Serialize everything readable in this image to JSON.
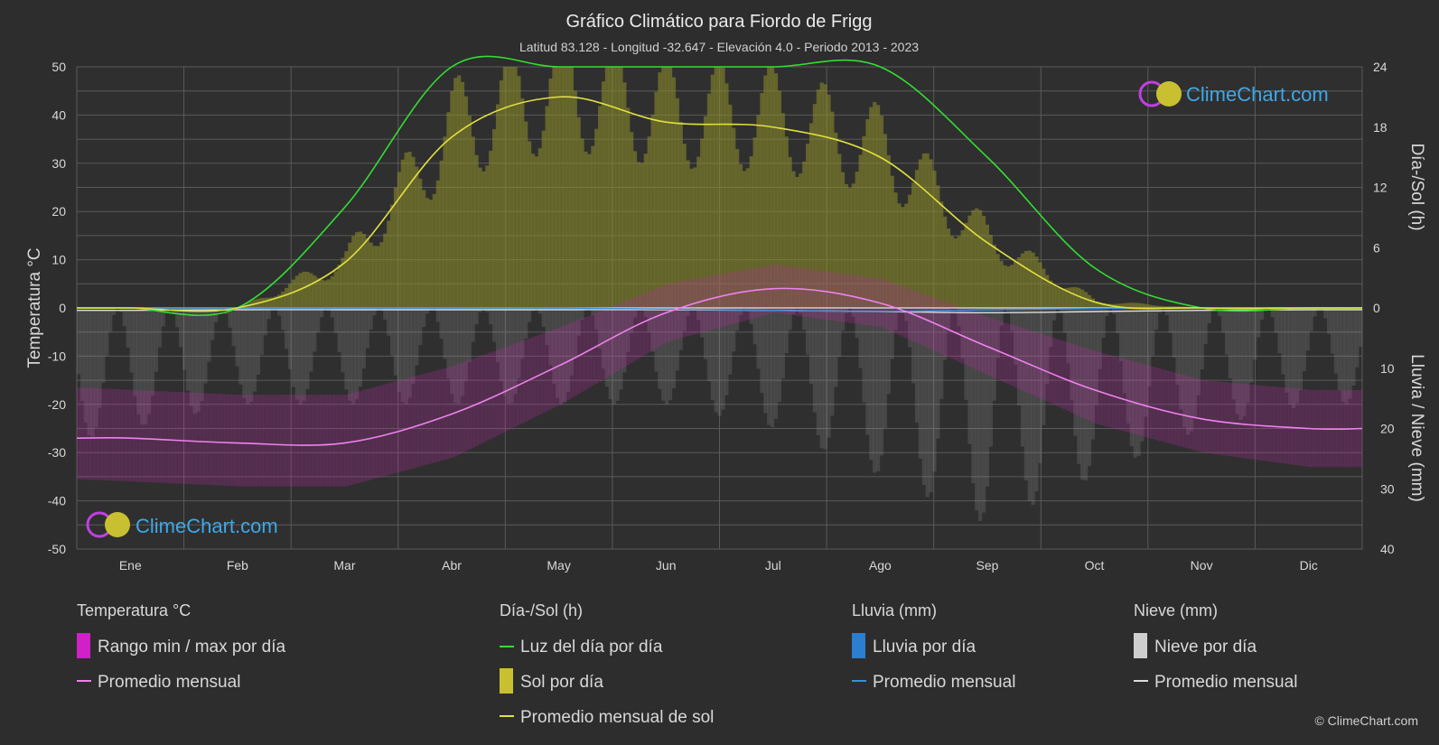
{
  "header": {
    "title": "Gráfico Climático para Fiordo de Frigg",
    "subtitle": "Latitud 83.128 - Longitud -32.647 - Elevación 4.0 - Periodo 2013 - 2023"
  },
  "branding": {
    "logo_text": "ClimeChart.com",
    "copyright": "© ClimeChart.com"
  },
  "axes": {
    "left_title": "Temperatura °C",
    "right_top_title": "Día-/Sol (h)",
    "right_bottom_title": "Lluvia / Nieve (mm)",
    "left_ticks": [
      "50",
      "40",
      "30",
      "20",
      "10",
      "0",
      "-10",
      "-20",
      "-30",
      "-40",
      "-50"
    ],
    "right_top_ticks": [
      "24",
      "18",
      "12",
      "6",
      "0"
    ],
    "right_bottom_ticks": [
      "10",
      "20",
      "30",
      "40"
    ]
  },
  "legend": {
    "temp": {
      "head": "Temperatura °C",
      "range": "Rango min / max por día",
      "avg": "Promedio mensual"
    },
    "sun": {
      "head": "Día-/Sol (h)",
      "daylight": "Luz del día por día",
      "sun": "Sol por día",
      "avg": "Promedio mensual de sol"
    },
    "rain": {
      "head": "Lluvia (mm)",
      "daily": "Lluvia por día",
      "avg": "Promedio mensual"
    },
    "snow": {
      "head": "Nieve (mm)",
      "daily": "Nieve por día",
      "avg": "Promedio mensual"
    }
  },
  "colors": {
    "background": "#2d2d2d",
    "grid": "#5a5a5a",
    "temp_avg": "#ee82ee",
    "temp_range": "#b0309f",
    "daylight": "#33dd33",
    "sun_fill": "#8e8e2a",
    "sun_avg": "#e0e040",
    "rain": "#3a8fd8",
    "snow": "#9a9a9a",
    "snow_avg": "#dddddd"
  },
  "chart_data": {
    "type": "area",
    "months": [
      "Ene",
      "Feb",
      "Mar",
      "Abr",
      "May",
      "Jun",
      "Jul",
      "Ago",
      "Sep",
      "Oct",
      "Nov",
      "Dic"
    ],
    "temp_ylim": [
      -50,
      50
    ],
    "hours_ylim": [
      0,
      24
    ],
    "precip_ylim": [
      0,
      40
    ],
    "series": [
      {
        "name": "Promedio mensual",
        "unit": "°C",
        "values": [
          -27,
          -28,
          -28,
          -22,
          -12,
          -1,
          4,
          1,
          -8,
          -17,
          -23,
          -25
        ]
      },
      {
        "name": "Luz del día por día",
        "unit": "h",
        "values": [
          0,
          0,
          10,
          24,
          24,
          24,
          24,
          24,
          15,
          4,
          0,
          0
        ]
      },
      {
        "name": "Promedio mensual de sol",
        "unit": "h",
        "values": [
          0,
          0,
          4.5,
          17,
          21,
          18.5,
          18,
          15,
          6.5,
          0.6,
          0,
          0
        ]
      },
      {
        "name": "Promedio mensual",
        "kind": "rain",
        "unit": "mm",
        "values": [
          0,
          0,
          0,
          0,
          0,
          0.2,
          0.4,
          0.6,
          0.3,
          0.1,
          0,
          0
        ]
      },
      {
        "name": "Promedio mensual",
        "kind": "snow",
        "unit": "mm",
        "values": [
          0.4,
          0.3,
          0.3,
          0.3,
          0.3,
          0.3,
          0.4,
          0.6,
          0.8,
          0.6,
          0.4,
          0.3
        ]
      },
      {
        "name": "Rango min / max por día",
        "kind": "temp_range",
        "unit": "°C",
        "min": [
          -36,
          -37,
          -37,
          -31,
          -20,
          -7,
          -1,
          -4,
          -14,
          -24,
          -30,
          -33
        ],
        "max": [
          -17,
          -18,
          -18,
          -12,
          -4,
          5,
          9,
          6,
          -2,
          -9,
          -15,
          -17
        ]
      }
    ]
  }
}
